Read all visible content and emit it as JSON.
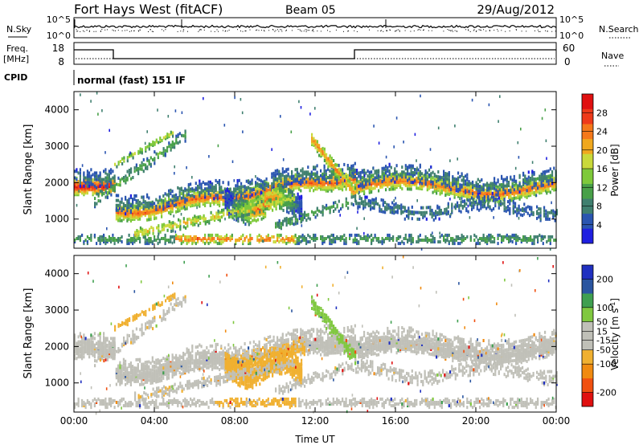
{
  "header": {
    "title": "Fort Hays West (fitACF)",
    "beam": "Beam 05",
    "date": "29/Aug/2012"
  },
  "status_panels": {
    "nsky_label": "N.Sky",
    "nsearch_label": "N.Search",
    "noise_ticks": [
      "10^5",
      "10^0"
    ],
    "freq_label": "Freq.",
    "freq_unit": "[MHz]",
    "freq_ticks": [
      "18",
      "8"
    ],
    "nave_label": "Nave",
    "nave_ticks": [
      "60",
      "0"
    ],
    "cpid_label": "CPID",
    "cpid_text": "normal (fast) 151 IF"
  },
  "chart_data": [
    {
      "type": "heatmap",
      "ylabel": "Slant Range [km]",
      "xlim": [
        "00:00",
        "24:00"
      ],
      "ylim": [
        200,
        4500
      ],
      "yticks": [
        1000,
        2000,
        3000,
        4000
      ],
      "colorbar": {
        "label": "Power [dB]",
        "ticks": [
          4,
          8,
          12,
          16,
          20,
          24,
          28
        ],
        "range": [
          0,
          32
        ],
        "colors": [
          "#1f1fe0",
          "#2a55b0",
          "#3f7f6f",
          "#48a048",
          "#7ec93a",
          "#c9d93a",
          "#f0a81e",
          "#f5781a",
          "#ee3a1a",
          "#e01010"
        ]
      }
    },
    {
      "type": "heatmap",
      "ylabel": "Slant Range [km]",
      "xlabel": "Time UT",
      "xticks": [
        "00:00",
        "04:00",
        "08:00",
        "12:00",
        "16:00",
        "20:00",
        "00:00"
      ],
      "xlim": [
        "00:00",
        "24:00"
      ],
      "ylim": [
        200,
        4500
      ],
      "yticks": [
        1000,
        2000,
        3000,
        4000
      ],
      "colorbar": {
        "label": "Velocity [m s^-1]",
        "ticks": [
          200,
          100,
          50,
          15,
          -15,
          -50,
          -100,
          -200
        ],
        "range": [
          -250,
          250
        ],
        "colors": [
          "#e01010",
          "#f05010",
          "#f08a10",
          "#f0b030",
          "#c0c0b8",
          "#c0c0b8",
          "#80c840",
          "#3f9f50",
          "#2a55a0",
          "#2030c0"
        ]
      }
    }
  ]
}
